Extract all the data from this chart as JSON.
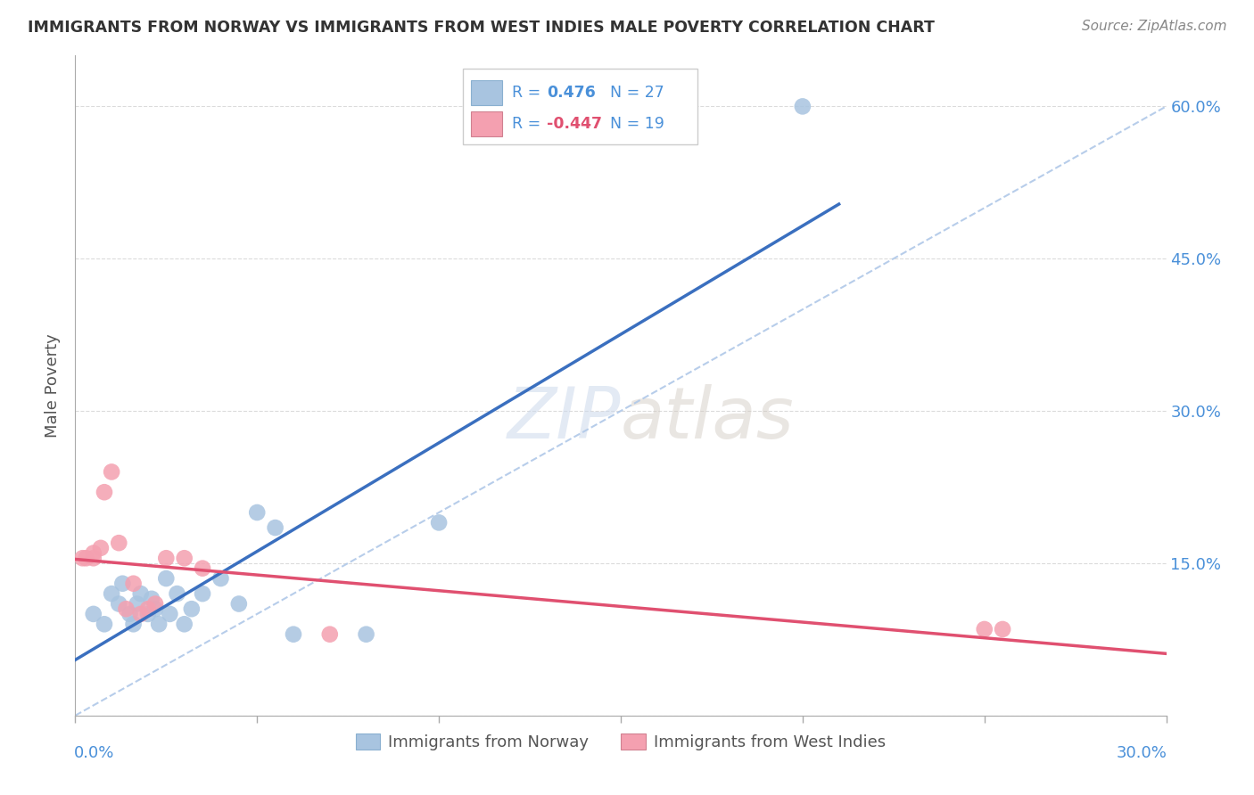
{
  "title": "IMMIGRANTS FROM NORWAY VS IMMIGRANTS FROM WEST INDIES MALE POVERTY CORRELATION CHART",
  "source": "Source: ZipAtlas.com",
  "ylabel": "Male Poverty",
  "yticks": [
    0.0,
    0.15,
    0.3,
    0.45,
    0.6
  ],
  "ytick_labels": [
    "",
    "15.0%",
    "30.0%",
    "45.0%",
    "60.0%"
  ],
  "xlim": [
    0.0,
    0.3
  ],
  "ylim": [
    0.0,
    0.65
  ],
  "norway_R": 0.476,
  "norway_N": 27,
  "westindies_R": -0.447,
  "westindies_N": 19,
  "norway_color": "#a8c4e0",
  "norway_line_color": "#3a6fbf",
  "westindies_color": "#f4a0b0",
  "westindies_line_color": "#e05070",
  "diagonal_color": "#b0c8e8",
  "text_blue": "#4a90d9",
  "text_pink": "#e05070",
  "text_dark": "#555555",
  "norway_x": [
    0.005,
    0.008,
    0.01,
    0.012,
    0.013,
    0.015,
    0.016,
    0.017,
    0.018,
    0.02,
    0.021,
    0.022,
    0.023,
    0.025,
    0.026,
    0.028,
    0.03,
    0.032,
    0.035,
    0.04,
    0.045,
    0.05,
    0.055,
    0.06,
    0.08,
    0.1,
    0.2
  ],
  "norway_y": [
    0.1,
    0.09,
    0.12,
    0.11,
    0.13,
    0.1,
    0.09,
    0.11,
    0.12,
    0.1,
    0.115,
    0.105,
    0.09,
    0.135,
    0.1,
    0.12,
    0.09,
    0.105,
    0.12,
    0.135,
    0.11,
    0.2,
    0.185,
    0.08,
    0.08,
    0.19,
    0.6
  ],
  "westindies_x": [
    0.003,
    0.005,
    0.007,
    0.008,
    0.01,
    0.012,
    0.014,
    0.016,
    0.018,
    0.02,
    0.022,
    0.025,
    0.03,
    0.035,
    0.25,
    0.255,
    0.07,
    0.005,
    0.002
  ],
  "westindies_y": [
    0.155,
    0.16,
    0.165,
    0.22,
    0.24,
    0.17,
    0.105,
    0.13,
    0.1,
    0.105,
    0.11,
    0.155,
    0.155,
    0.145,
    0.085,
    0.085,
    0.08,
    0.155,
    0.155
  ]
}
